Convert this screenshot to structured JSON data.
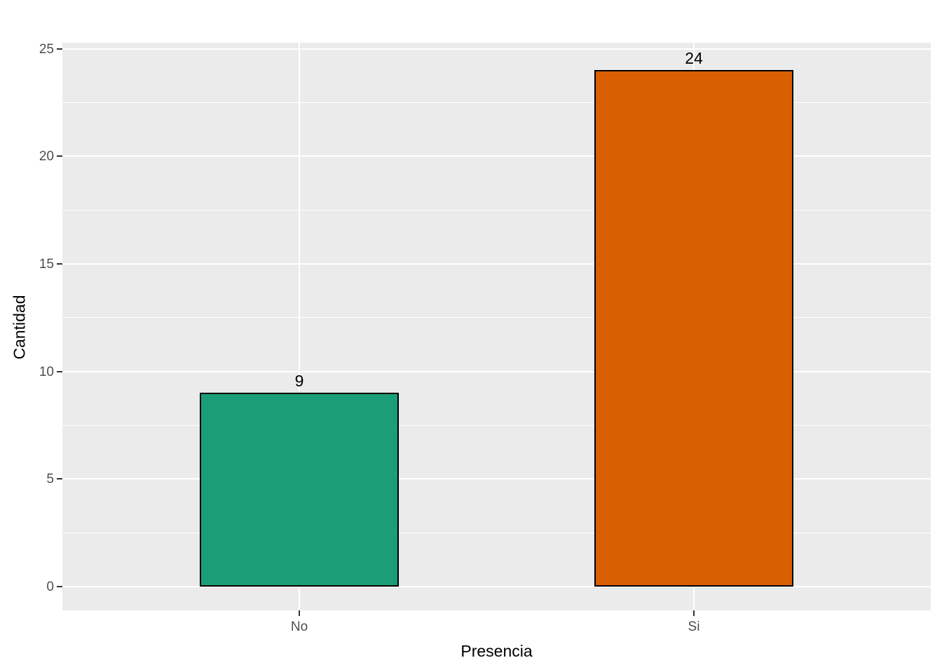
{
  "chart_data": {
    "type": "bar",
    "categories": [
      "No",
      "Si"
    ],
    "values": [
      9,
      24
    ],
    "bar_labels": [
      "9",
      "24"
    ],
    "bar_colors": [
      "#1B9E77",
      "#D95F02"
    ],
    "bar_border_color": "#000000",
    "title": "",
    "xlabel": "Presencia",
    "ylabel": "Cantidad",
    "ylim": [
      0,
      25
    ],
    "yticks": [
      0,
      5,
      10,
      15,
      20,
      25
    ],
    "minor_gridlines": [
      2.5,
      7.5,
      12.5,
      17.5,
      22.5
    ],
    "grid": "on",
    "legend_position": "none",
    "panel_background": "#EBEBEB",
    "major_gridline_color": "#FFFFFF",
    "minor_gridline_color": "#FFFFFF",
    "tick_label_color": "#4D4D4D",
    "axis_title_color": "#000000",
    "value_label_color": "#000000"
  }
}
